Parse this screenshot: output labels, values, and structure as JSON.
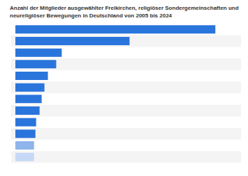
{
  "chart_data": {
    "type": "bar",
    "title": "Anzahl der Mitglieder ausgewählter Freikirchen, religiöser Sondergemeinschaften und neureligiöser Bewegungen in Deutschland von 2005 bis 2024",
    "orientation": "horizontal",
    "categories": [
      null,
      null,
      null,
      null,
      null,
      null,
      null,
      null,
      null,
      null,
      null,
      null
    ],
    "values": [
      289,
      165,
      67,
      59,
      47,
      42,
      38,
      35,
      30,
      29,
      27,
      27
    ],
    "colors": [
      "#2a75dc",
      "#2a75dc",
      "#2a75dc",
      "#2a75dc",
      "#2a75dc",
      "#2a75dc",
      "#2a75dc",
      "#2a75dc",
      "#2a75dc",
      "#2a75dc",
      "#8fb4ec",
      "#c6d8f6"
    ],
    "xlim": [
      0,
      320
    ],
    "tick_labels": false,
    "grid": false
  }
}
